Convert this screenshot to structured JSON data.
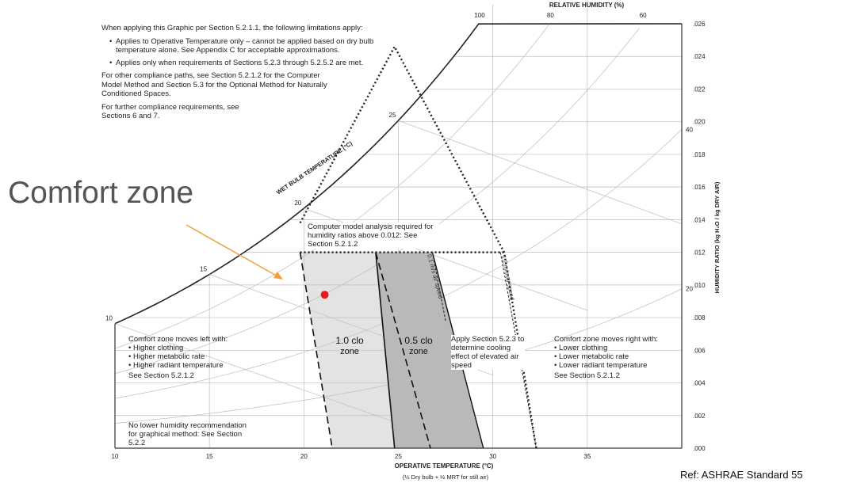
{
  "chart_data": {
    "type": "psychrometric",
    "title": "",
    "xlabel": "OPERATIVE TEMPERATURE (°C)",
    "xlabel_sub": "(½ Dry bulb + ½ MRT for still air)",
    "ylabel": "HUMIDITY RATIO (kg H₂O / kg DRY AIR)",
    "top_axis_label": "RELATIVE HUMIDITY (%)",
    "wet_bulb_label": "WET BULB TEMPERATURE (°C)",
    "xlim": [
      10,
      40
    ],
    "ylim": [
      0,
      0.026
    ],
    "x_ticks": [
      "10",
      "15",
      "20",
      "25",
      "30",
      "35"
    ],
    "y_ticks": [
      ".000",
      ".002",
      ".004",
      ".006",
      ".008",
      ".010",
      ".012",
      ".014",
      ".016",
      ".018",
      ".020",
      ".022",
      ".024",
      ".026"
    ],
    "rh_curves": [
      100,
      80,
      60,
      40,
      20
    ],
    "rh_labels": [
      {
        "text": "100",
        "rh": 100
      },
      {
        "text": "80",
        "rh": 80
      },
      {
        "text": "60",
        "rh": 60
      },
      {
        "text": "40",
        "rh": 40
      },
      {
        "text": "20",
        "rh": 20
      }
    ],
    "wet_bulb_lines": [
      10,
      15,
      20,
      25
    ],
    "zones": [
      {
        "name": "1.0 clo zone",
        "label_line1": "1.0 clo",
        "label_line2": "zone",
        "polygon": [
          [
            19.8,
            0.012
          ],
          [
            23.8,
            0.012
          ],
          [
            26.7,
            0.0
          ],
          [
            21.5,
            0.0
          ]
        ]
      },
      {
        "name": "0.5 clo zone",
        "label_line1": "0.5 clo",
        "label_line2": "zone",
        "polygon": [
          [
            23.8,
            0.012
          ],
          [
            26.8,
            0.012
          ],
          [
            29.5,
            0.0
          ],
          [
            24.8,
            0.0
          ]
        ]
      }
    ],
    "elevated_speed_lines": [
      {
        "label": "0.1 m/s air speed",
        "points": [
          [
            26.8,
            0.012
          ],
          [
            27.5,
            0.0078
          ]
        ]
      },
      {
        "label": "1.2 m/s air speed",
        "points": [
          [
            30.4,
            0.012
          ],
          [
            32.3,
            0.0
          ]
        ]
      }
    ],
    "humidity_limit": 0.012,
    "marker": {
      "x": 21.1,
      "y": 0.0094,
      "color": "#e51b1b"
    },
    "annotation_arrow_color": "#f2a03d"
  },
  "annotations": {
    "limitations_intro": "When applying this Graphic per Section 5.2.1.1, the following limitations apply:",
    "limitation_1": "Applies to Operative Temperature only – cannot be applied based on dry bulb temperature alone. See Appendix C for acceptable approximations.",
    "limitation_2": "Applies only when requirements of Sections 5.2.3 through 5.2.5.2 are met.",
    "other_paths": "For other compliance paths, see Section 5.2.1.2 for the Computer Model Method and Section 5.3 for the Optional Method for Naturally Conditioned Spaces.",
    "further": "For further compliance requirements, see Sections 6 and 7.",
    "computer_model": "Computer model analysis required for humidity ratios above 0.012: See Section 5.2.1.2",
    "left_box_title": "Comfort zone moves left with:",
    "left_box_items": [
      "Higher clothing",
      "Higher metabolic rate",
      "Higher radiant temperature"
    ],
    "left_box_see": "See Section 5.2.1.2",
    "right_box_title": "Comfort zone moves right with:",
    "right_box_items": [
      "Lower clothing",
      "Lower metabolic rate",
      "Lower radiant temperature"
    ],
    "right_box_see": "See Section 5.2.1.2",
    "apply_section": "Apply Section 5.2.3 to determine cooling effect of elevated air speed",
    "no_lower": "No lower humidity recommendation for graphical method: See Section 5.2.2",
    "comfort_zone_label": "Comfort zone",
    "reference": "Ref: ASHRAE Standard 55"
  },
  "colors": {
    "zone_light": "#e3e3e3",
    "zone_dark": "#b9b9b9",
    "grid": "#bdbdbd",
    "frame": "#333333",
    "curve": "#222222"
  }
}
